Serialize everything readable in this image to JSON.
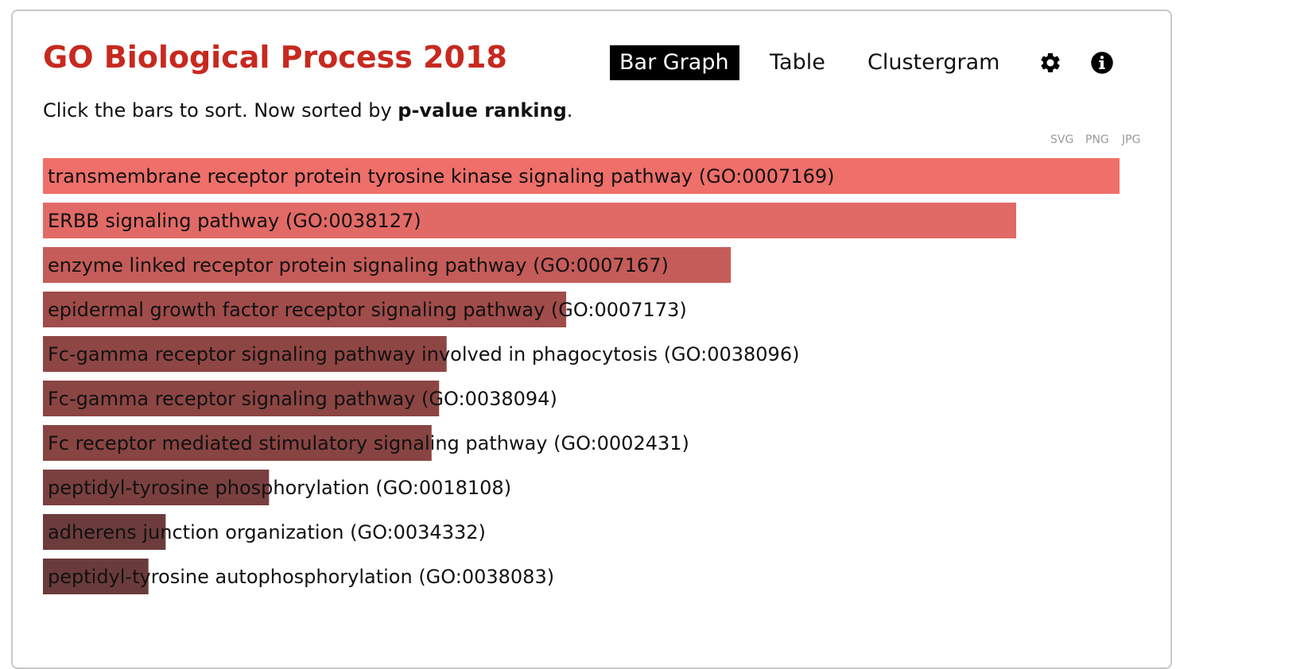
{
  "header": {
    "title": "GO Biological Process 2018",
    "tabs": [
      {
        "label": "Bar Graph",
        "active": true
      },
      {
        "label": "Table",
        "active": false
      },
      {
        "label": "Clustergram",
        "active": false
      }
    ],
    "settings_icon": "gear-icon",
    "info_icon": "info-icon",
    "title_color": "#c7291f"
  },
  "sort_info": {
    "prefix": "Click the bars to sort. Now sorted by ",
    "key": "p-value ranking",
    "suffix": "."
  },
  "export": {
    "svg": "SVG",
    "png": "PNG",
    "jpg": "JPG"
  },
  "chart_data": {
    "type": "bar",
    "orientation": "horizontal",
    "sorted_by": "p-value ranking",
    "value_scale": "relative",
    "xlim": [
      0,
      1
    ],
    "grid": false,
    "categories": [
      "transmembrane receptor protein tyrosine kinase signaling pathway (GO:0007169)",
      "ERBB signaling pathway (GO:0038127)",
      "enzyme linked receptor protein signaling pathway (GO:0007167)",
      "epidermal growth factor receptor signaling pathway (GO:0007173)",
      "Fc-gamma receptor signaling pathway involved in phagocytosis (GO:0038096)",
      "Fc-gamma receptor signaling pathway (GO:0038094)",
      "Fc receptor mediated stimulatory signaling pathway (GO:0002431)",
      "peptidyl-tyrosine phosphorylation (GO:0018108)",
      "adherens junction organization (GO:0034332)",
      "peptidyl-tyrosine autophosphorylation (GO:0038083)"
    ],
    "values": [
      1.0,
      0.904,
      0.639,
      0.486,
      0.375,
      0.368,
      0.361,
      0.21,
      0.114,
      0.098
    ],
    "colors": [
      "#ef6f6a",
      "#e26a66",
      "#c65c59",
      "#a04c4a",
      "#8e4644",
      "#8b4543",
      "#884442",
      "#7a403f",
      "#6c3c3c",
      "#6a3b3b"
    ]
  }
}
